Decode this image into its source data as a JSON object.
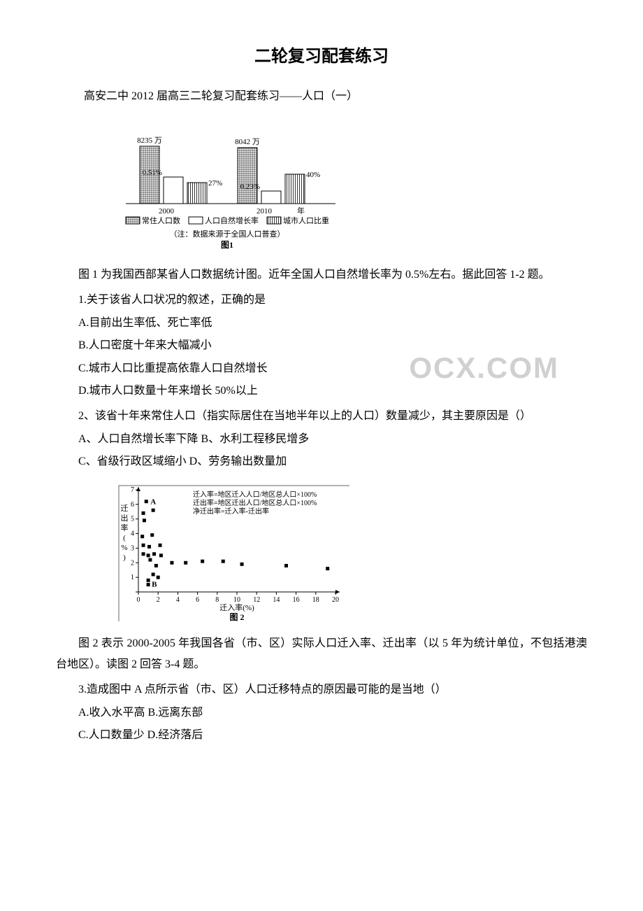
{
  "title": "二轮复习配套练习",
  "subtitle": "高安二中 2012 届高三二轮复习配套练习——人口（一）",
  "watermark": "OCX.COM",
  "fig1": {
    "type": "bar",
    "year_labels": [
      "2000",
      "2010"
    ],
    "year_suffix": "年",
    "bar_labels": {
      "pop_2000": "8235 万",
      "pop_2010": "8042 万",
      "growth_2000": "0.51%",
      "urban_2000": "27%",
      "growth_2010": "0.23%",
      "urban_2010": "40%"
    },
    "bar_heights": {
      "pop_2000": 82,
      "growth_2000": 38,
      "urban_2000": 30,
      "pop_2010": 80,
      "growth_2010": 18,
      "urban_2010": 42
    },
    "legend": {
      "pop": "常住人口数",
      "growth": "人口自然增长率",
      "urban": "城市人口比重"
    },
    "note": "（注：数据来源于全国人口普查）",
    "caption": "图1",
    "colors": {
      "outline": "#000000",
      "hatch": "#000000",
      "bg": "#ffffff"
    },
    "font_size": 11
  },
  "fig2": {
    "type": "scatter",
    "xlabel": "迁入率(%)",
    "ylabel": "迁出率(%)",
    "legend_lines": [
      "迁入率=地区迁入人口/地区总人口×100%",
      "迁出率=地区迁出人口/地区总人口×100%",
      "净迁出率=迁入率-迁出率"
    ],
    "caption": "图  2",
    "xlim": [
      0,
      20
    ],
    "ylim": [
      0,
      7
    ],
    "xticks": [
      0,
      2,
      4,
      6,
      8,
      10,
      12,
      14,
      16,
      18,
      20
    ],
    "yticks": [
      0,
      1,
      2,
      3,
      4,
      5,
      6,
      7
    ],
    "label_A": "A",
    "label_B": "B",
    "point_A": [
      0.8,
      6.2
    ],
    "point_B": [
      1.0,
      0.5
    ],
    "points": [
      [
        0.5,
        5.4
      ],
      [
        0.6,
        4.9
      ],
      [
        1.5,
        5.6
      ],
      [
        0.4,
        3.8
      ],
      [
        1.4,
        3.9
      ],
      [
        0.5,
        3.2
      ],
      [
        1.1,
        3.1
      ],
      [
        2.2,
        3.2
      ],
      [
        0.5,
        2.6
      ],
      [
        1.0,
        2.5
      ],
      [
        1.2,
        2.2
      ],
      [
        1.6,
        2.6
      ],
      [
        2.3,
        2.5
      ],
      [
        1.8,
        1.8
      ],
      [
        3.4,
        2.0
      ],
      [
        4.8,
        2.0
      ],
      [
        6.5,
        2.1
      ],
      [
        8.6,
        2.1
      ],
      [
        10.5,
        1.9
      ],
      [
        1.5,
        1.2
      ],
      [
        2.0,
        1.0
      ],
      [
        1.0,
        0.8
      ],
      [
        15.0,
        1.8
      ],
      [
        19.2,
        1.6
      ]
    ],
    "colors": {
      "axis": "#000000",
      "marker": "#000000",
      "bg": "#ffffff"
    },
    "marker_size": 5,
    "font_size": 11
  },
  "text": {
    "p_fig1": "图 1 为我国西部某省人口数据统计图。近年全国人口自然增长率为 0.5%左右。据此回答 1-2 题。",
    "q1": "1.关于该省人口状况的叙述，正确的是",
    "q1a": "A.目前出生率低、死亡率低",
    "q1b": "B.人口密度十年来大幅减小",
    "q1c": "C.城市人口比重提高依靠人口自然增长",
    "q1d": "D.城市人口数量十年来增长 50%以上",
    "q2": "2、该省十年来常住人口（指实际居住在当地半年以上的人口）数量减少，其主要原因是（）",
    "q2ab": "A、人口自然增长率下降 B、水利工程移民增多",
    "q2cd": "C、省级行政区域缩小  D、劳务输出数量加",
    "p_fig2": "图 2 表示 2000-2005 年我国各省（市、区）实际人口迁入率、迁出率（以 5 年为统计单位，不包括港澳台地区）。读图 2 回答 3-4 题。",
    "q3": "3.造成图中 A 点所示省（市、区）人口迁移特点的原因最可能的是当地（）",
    "q3ab": "A.收入水平高 B.远离东部",
    "q3cd": "C.人口数量少  D.经济落后"
  }
}
